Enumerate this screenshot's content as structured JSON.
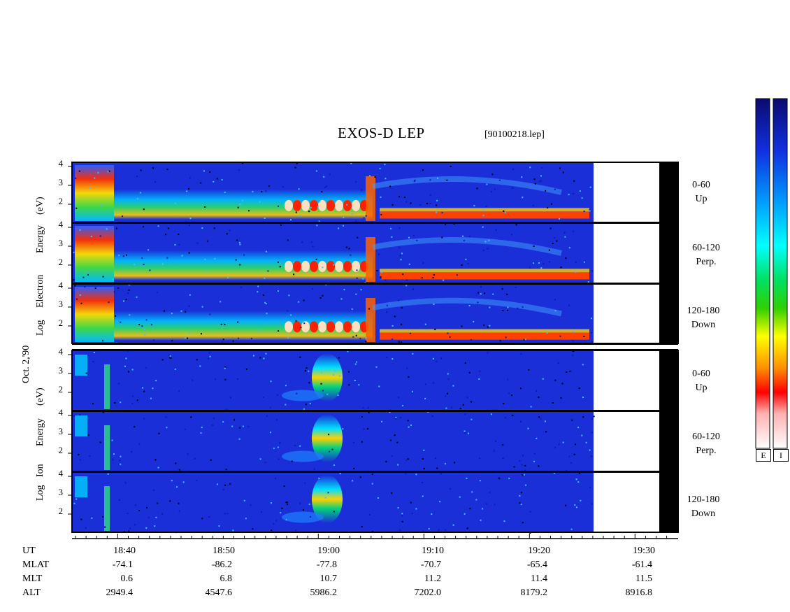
{
  "chart_data": {
    "type": "heatmap",
    "title": "EXOS-D LEP",
    "filename": "[90100218.lep]",
    "date_label": "Oct. 2,'90",
    "electron": {
      "ylabel_lines": [
        "Log",
        "Electron",
        "Energy",
        "(eV)"
      ],
      "panels": [
        {
          "range": "0-60",
          "dir": "Up"
        },
        {
          "range": "60-120",
          "dir": "Perp."
        },
        {
          "range": "120-180",
          "dir": "Down"
        }
      ]
    },
    "ion": {
      "ylabel_lines": [
        "Log",
        "Ion",
        "Energy",
        "(eV)"
      ],
      "panels": [
        {
          "range": "0-60",
          "dir": "Up"
        },
        {
          "range": "60-120",
          "dir": "Perp."
        },
        {
          "range": "120-180",
          "dir": "Down"
        }
      ]
    },
    "ytick_labels": [
      "4",
      "3",
      "2"
    ],
    "x_axis": {
      "row_labels": [
        "UT",
        "MLAT",
        "MLT",
        "ALT"
      ],
      "columns": [
        {
          "UT": "18:40",
          "MLAT": "-74.1",
          "MLT": "0.6",
          "ALT": "2949.4"
        },
        {
          "UT": "18:50",
          "MLAT": "-86.2",
          "MLT": "6.8",
          "ALT": "4547.6"
        },
        {
          "UT": "19:00",
          "MLAT": "-77.8",
          "MLT": "10.7",
          "ALT": "5986.2"
        },
        {
          "UT": "19:10",
          "MLAT": "-70.7",
          "MLT": "11.2",
          "ALT": "7202.0"
        },
        {
          "UT": "19:20",
          "MLAT": "-65.4",
          "MLT": "11.4",
          "ALT": "8179.2"
        },
        {
          "UT": "19:30",
          "MLAT": "-61.4",
          "MLT": "11.5",
          "ALT": "8916.8"
        }
      ]
    },
    "colorbar_labels": [
      "E",
      "I"
    ],
    "colors": {
      "background": "#1a2fd8",
      "colorbar_stops": [
        "#0a0a6e",
        "#1030e0",
        "#00a0ff",
        "#00ffff",
        "#00e060",
        "#30d000",
        "#ffff00",
        "#ff9000",
        "#ff0000",
        "#ffe0e0"
      ]
    }
  }
}
